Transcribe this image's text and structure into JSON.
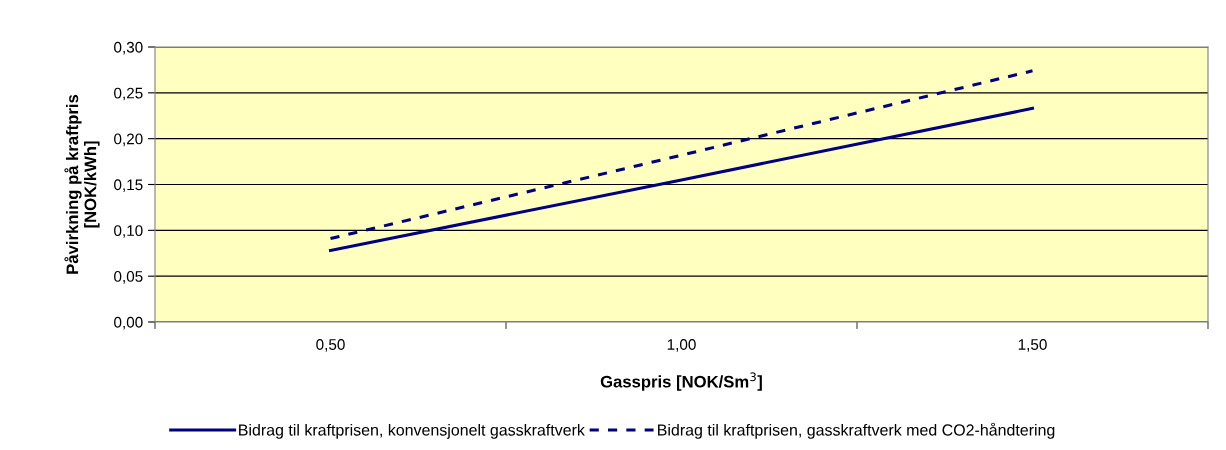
{
  "chart_data": {
    "type": "line",
    "xlabel": "Gasspris [NOK/Sm$^{3}$]",
    "ylabel": "Påvirkning på kraftpris\n[NOK/kWh]",
    "categories": [
      "0,50",
      "1,00",
      "1,50"
    ],
    "series": [
      {
        "name": "Bidrag til kraftprisen, konvensjonelt gasskraftverk",
        "color": "#000080",
        "line_style": "solid",
        "values": [
          0.078,
          0.155,
          0.233
        ]
      },
      {
        "name": "Bidrag til kraftprisen, gasskraftverk med CO2-håndtering",
        "color": "#000080",
        "line_style": "dashed",
        "values": [
          0.091,
          0.182,
          0.274
        ]
      }
    ],
    "ylim": [
      0,
      0.3
    ],
    "yticks": [
      {
        "value": 0,
        "label": "0,00"
      },
      {
        "value": 0.05,
        "label": "0,05"
      },
      {
        "value": 0.1,
        "label": "0,10"
      },
      {
        "value": 0.15,
        "label": "0,15"
      },
      {
        "value": 0.2,
        "label": "0,20"
      },
      {
        "value": 0.25,
        "label": "0,25"
      },
      {
        "value": 0.3,
        "label": "0,30"
      }
    ],
    "grid": "y",
    "legend": "bottom",
    "marker": "none"
  }
}
